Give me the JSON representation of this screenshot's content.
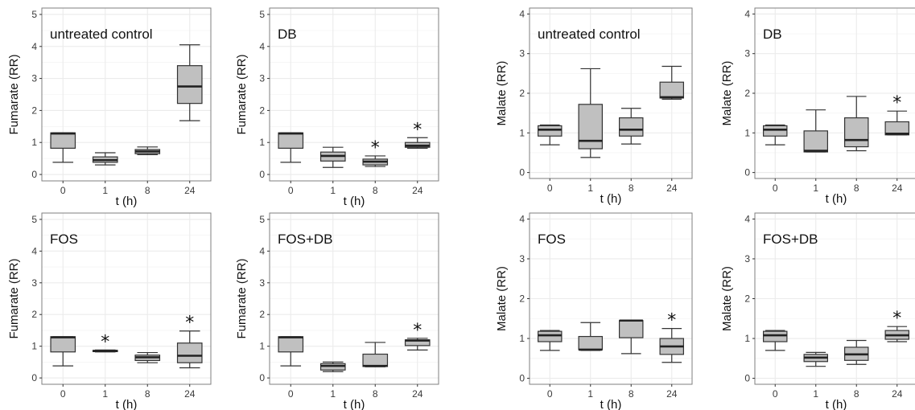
{
  "figure": {
    "style": {
      "box_fill": "#c0c0c0",
      "box_stroke": "#333333",
      "grid_color": "#ebebeb",
      "panel_border": "#7f7f7f"
    }
  },
  "chart_data": [
    {
      "type": "box",
      "title": "untreated control",
      "xlabel": "t (h)",
      "ylabel": "Fumarate (RR)",
      "categories": [
        "0",
        "1",
        "8",
        "24"
      ],
      "ylim": [
        -0.2,
        5.2
      ],
      "yticks": [
        0,
        1,
        2,
        3,
        4,
        5
      ],
      "grid": true,
      "boxes": [
        {
          "whislo": 0.38,
          "q1": 0.82,
          "med": 1.28,
          "q3": 1.3,
          "whishi": 1.3
        },
        {
          "whislo": 0.3,
          "q1": 0.38,
          "med": 0.45,
          "q3": 0.55,
          "whishi": 0.68
        },
        {
          "whislo": 0.62,
          "q1": 0.65,
          "med": 0.72,
          "q3": 0.78,
          "whishi": 0.86
        },
        {
          "whislo": 1.68,
          "q1": 2.22,
          "med": 2.75,
          "q3": 3.4,
          "whishi": 4.05
        }
      ],
      "significant": [
        false,
        false,
        false,
        false
      ]
    },
    {
      "type": "box",
      "title": "DB",
      "xlabel": "t (h)",
      "ylabel": "Fumarate (RR)",
      "categories": [
        "0",
        "1",
        "8",
        "24"
      ],
      "ylim": [
        -0.2,
        5.2
      ],
      "yticks": [
        0,
        1,
        2,
        3,
        4,
        5
      ],
      "grid": true,
      "boxes": [
        {
          "whislo": 0.38,
          "q1": 0.82,
          "med": 1.28,
          "q3": 1.3,
          "whishi": 1.3
        },
        {
          "whislo": 0.22,
          "q1": 0.42,
          "med": 0.58,
          "q3": 0.7,
          "whishi": 0.85
        },
        {
          "whislo": 0.25,
          "q1": 0.3,
          "med": 0.4,
          "q3": 0.48,
          "whishi": 0.58
        },
        {
          "whislo": 0.82,
          "q1": 0.85,
          "med": 0.9,
          "q3": 1.0,
          "whishi": 1.15
        }
      ],
      "significant": [
        false,
        false,
        true,
        true
      ]
    },
    {
      "type": "box",
      "title": "untreated control",
      "xlabel": "t (h)",
      "ylabel": "Malate (RR)",
      "categories": [
        "0",
        "1",
        "8",
        "24"
      ],
      "ylim": [
        -0.15,
        4.15
      ],
      "yticks": [
        0,
        1,
        2,
        3,
        4
      ],
      "grid": true,
      "boxes": [
        {
          "whislo": 0.7,
          "q1": 0.92,
          "med": 1.08,
          "q3": 1.18,
          "whishi": 1.2
        },
        {
          "whislo": 0.38,
          "q1": 0.6,
          "med": 0.8,
          "q3": 1.72,
          "whishi": 2.62
        },
        {
          "whislo": 0.72,
          "q1": 0.92,
          "med": 1.08,
          "q3": 1.38,
          "whishi": 1.62
        },
        {
          "whislo": 1.85,
          "q1": 1.88,
          "med": 1.9,
          "q3": 2.28,
          "whishi": 2.68
        }
      ],
      "significant": [
        false,
        false,
        false,
        false
      ]
    },
    {
      "type": "box",
      "title": "DB",
      "xlabel": "t (h)",
      "ylabel": "Malate (RR)",
      "categories": [
        "0",
        "1",
        "8",
        "24"
      ],
      "ylim": [
        -0.15,
        4.15
      ],
      "yticks": [
        0,
        1,
        2,
        3,
        4
      ],
      "grid": true,
      "boxes": [
        {
          "whislo": 0.7,
          "q1": 0.92,
          "med": 1.08,
          "q3": 1.18,
          "whishi": 1.2
        },
        {
          "whislo": 0.52,
          "q1": 0.52,
          "med": 0.55,
          "q3": 1.05,
          "whishi": 1.58
        },
        {
          "whislo": 0.55,
          "q1": 0.65,
          "med": 0.82,
          "q3": 1.38,
          "whishi": 1.92
        },
        {
          "whislo": 0.95,
          "q1": 0.95,
          "med": 0.98,
          "q3": 1.28,
          "whishi": 1.55
        }
      ],
      "significant": [
        false,
        false,
        false,
        true
      ]
    },
    {
      "type": "box",
      "title": "FOS",
      "xlabel": "t (h)",
      "ylabel": "Fumarate (RR)",
      "categories": [
        "0",
        "1",
        "8",
        "24"
      ],
      "ylim": [
        -0.2,
        5.2
      ],
      "yticks": [
        0,
        1,
        2,
        3,
        4,
        5
      ],
      "grid": true,
      "boxes": [
        {
          "whislo": 0.38,
          "q1": 0.82,
          "med": 1.28,
          "q3": 1.3,
          "whishi": 1.3
        },
        {
          "whislo": 0.82,
          "q1": 0.83,
          "med": 0.85,
          "q3": 0.87,
          "whishi": 0.88
        },
        {
          "whislo": 0.48,
          "q1": 0.55,
          "med": 0.65,
          "q3": 0.72,
          "whishi": 0.8
        },
        {
          "whislo": 0.32,
          "q1": 0.48,
          "med": 0.7,
          "q3": 1.1,
          "whishi": 1.48
        }
      ],
      "significant": [
        false,
        true,
        false,
        true
      ]
    },
    {
      "type": "box",
      "title": "FOS+DB",
      "xlabel": "t (h)",
      "ylabel": "Fumarate (RR)",
      "categories": [
        "0",
        "1",
        "8",
        "24"
      ],
      "ylim": [
        -0.2,
        5.2
      ],
      "yticks": [
        0,
        1,
        2,
        3,
        4,
        5
      ],
      "grid": true,
      "boxes": [
        {
          "whislo": 0.38,
          "q1": 0.82,
          "med": 1.28,
          "q3": 1.3,
          "whishi": 1.3
        },
        {
          "whislo": 0.2,
          "q1": 0.25,
          "med": 0.38,
          "q3": 0.45,
          "whishi": 0.5
        },
        {
          "whislo": 0.35,
          "q1": 0.36,
          "med": 0.38,
          "q3": 0.75,
          "whishi": 1.12
        },
        {
          "whislo": 0.88,
          "q1": 1.02,
          "med": 1.18,
          "q3": 1.2,
          "whishi": 1.25
        }
      ],
      "significant": [
        false,
        false,
        false,
        true
      ]
    },
    {
      "type": "box",
      "title": "FOS",
      "xlabel": "t (h)",
      "ylabel": "Malate (RR)",
      "categories": [
        "0",
        "1",
        "8",
        "24"
      ],
      "ylim": [
        -0.15,
        4.15
      ],
      "yticks": [
        0,
        1,
        2,
        3,
        4
      ],
      "grid": true,
      "boxes": [
        {
          "whislo": 0.7,
          "q1": 0.92,
          "med": 1.08,
          "q3": 1.18,
          "whishi": 1.2
        },
        {
          "whislo": 0.7,
          "q1": 0.72,
          "med": 0.72,
          "q3": 1.05,
          "whishi": 1.4
        },
        {
          "whislo": 0.62,
          "q1": 1.02,
          "med": 1.45,
          "q3": 1.45,
          "whishi": 1.45
        },
        {
          "whislo": 0.4,
          "q1": 0.6,
          "med": 0.8,
          "q3": 1.0,
          "whishi": 1.25
        }
      ],
      "significant": [
        false,
        false,
        false,
        true
      ]
    },
    {
      "type": "box",
      "title": "FOS+DB",
      "xlabel": "t (h)",
      "ylabel": "Malate (RR)",
      "categories": [
        "0",
        "1",
        "8",
        "24"
      ],
      "ylim": [
        -0.15,
        4.15
      ],
      "yticks": [
        0,
        1,
        2,
        3,
        4
      ],
      "grid": true,
      "boxes": [
        {
          "whislo": 0.7,
          "q1": 0.92,
          "med": 1.08,
          "q3": 1.18,
          "whishi": 1.2
        },
        {
          "whislo": 0.3,
          "q1": 0.42,
          "med": 0.52,
          "q3": 0.6,
          "whishi": 0.65
        },
        {
          "whislo": 0.35,
          "q1": 0.45,
          "med": 0.6,
          "q3": 0.78,
          "whishi": 0.95
        },
        {
          "whislo": 0.92,
          "q1": 0.98,
          "med": 1.08,
          "q3": 1.2,
          "whishi": 1.3
        }
      ],
      "significant": [
        false,
        false,
        false,
        true
      ]
    }
  ]
}
